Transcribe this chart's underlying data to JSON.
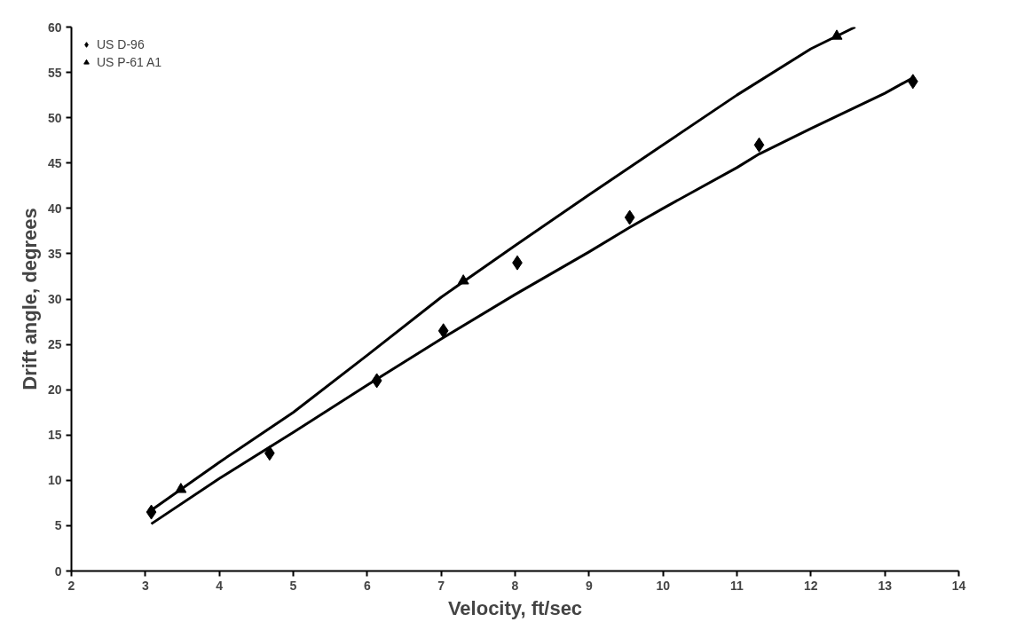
{
  "chart_data": {
    "type": "scatter",
    "xlabel": "Velocity, ft/sec",
    "ylabel": "Drift angle, degrees",
    "xlim": [
      2,
      14
    ],
    "xticks": [
      2,
      3,
      4,
      5,
      6,
      7,
      8,
      9,
      10,
      11,
      12,
      13,
      14
    ],
    "ylim": [
      0,
      60
    ],
    "yticks": [
      0,
      5,
      10,
      15,
      20,
      25,
      30,
      35,
      40,
      45,
      50,
      55,
      60
    ],
    "grid": false,
    "legend": "top left",
    "series": [
      {
        "name": "US D-96",
        "color": "#000000",
        "marker": "diamond",
        "x": [
          3.08,
          4.68,
          6.13,
          7.03,
          8.03,
          9.55,
          11.3,
          13.38
        ],
        "values": [
          6.5,
          13,
          21,
          26.5,
          34,
          39,
          47,
          54
        ]
      },
      {
        "name": "US P-61 A1",
        "color": "#000000",
        "marker": "triangle",
        "x": [
          3.48,
          7.3,
          12.35
        ],
        "values": [
          9,
          32,
          59
        ]
      },
      {
        "type": "line",
        "color": "#000000",
        "x": [
          3.08,
          4,
          5,
          6,
          7,
          8,
          9,
          9.55,
          10,
          11,
          11.3,
          12,
          13,
          13.4
        ],
        "values": [
          5.2,
          10.2,
          15.3,
          20.5,
          25.6,
          30.5,
          35.2,
          37.9,
          40,
          44.5,
          46,
          48.8,
          52.7,
          54.5
        ]
      },
      {
        "type": "line",
        "color": "#000000",
        "x": [
          3.08,
          4,
          5,
          6,
          7,
          8,
          9,
          10,
          11,
          12,
          12.6
        ],
        "values": [
          6.7,
          12,
          17.5,
          23.8,
          30.2,
          35.9,
          41.5,
          47,
          52.5,
          57.6,
          60
        ]
      }
    ]
  }
}
